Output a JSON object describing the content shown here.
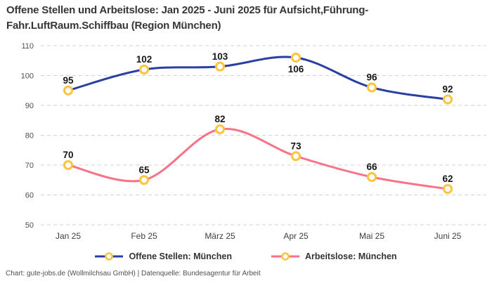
{
  "title": {
    "line1": "Offene Stellen und Arbeitslose: Jan 2025 - Juni 2025 für Aufsicht,Führung-",
    "line2": "Fahr.LuftRaum.Schiffbau (Region München)"
  },
  "chart_data": {
    "type": "line",
    "categories": [
      "Jan 25",
      "Feb 25",
      "März 25",
      "Apr 25",
      "Mai 25",
      "Juni 25"
    ],
    "series": [
      {
        "name": "Offene Stellen: München",
        "values": [
          95,
          102,
          103,
          106,
          96,
          92
        ],
        "color": "#2a3fa3",
        "label_positions": [
          "above",
          "above",
          "above",
          "below",
          "above",
          "above"
        ]
      },
      {
        "name": "Arbeitslose: München",
        "values": [
          70,
          65,
          82,
          73,
          66,
          62
        ],
        "color": "#f97287",
        "label_positions": [
          "above",
          "above",
          "above",
          "above",
          "above",
          "above"
        ]
      }
    ],
    "marker": {
      "fill": "#ffffff",
      "stroke": "#ffc43d"
    },
    "ylim": [
      50,
      110
    ],
    "ytick_step": 10,
    "yticks": [
      "110",
      "100",
      "90",
      "80",
      "70",
      "60",
      "50"
    ],
    "grid": "horizontal-dashed",
    "grid_color": "#d2d2d2",
    "label_color": "#161616",
    "axis_text_color": "#4e4e4e",
    "legend_position": "bottom"
  },
  "footer": "Chart: gute-jobs.de (Wollmilchsau GmbH) | Datenquelle: Bundesagentur für Arbeit"
}
